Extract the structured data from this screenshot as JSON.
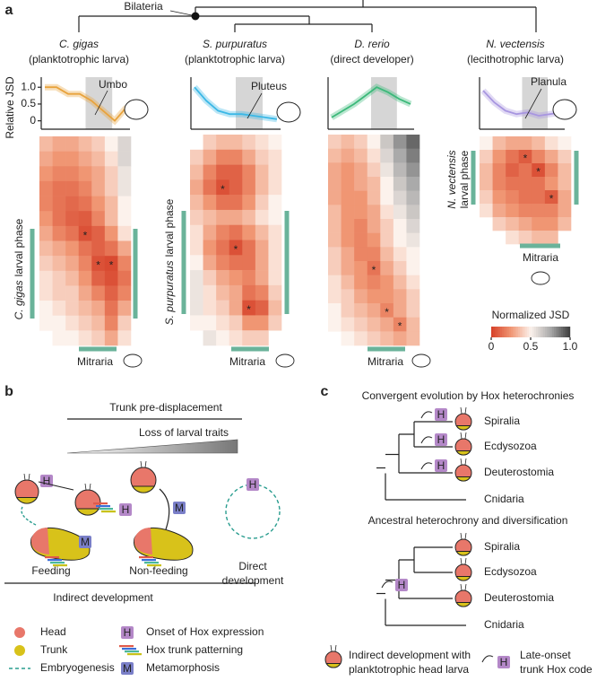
{
  "panel_a": {
    "label": "a",
    "tree_node": "Bilateria",
    "y_label": "Relative JSD",
    "mitraria": "Mitraria",
    "star": "*",
    "line_ylim": [
      -0.25,
      1.3
    ],
    "line_yticks": [
      0,
      0.5,
      {
        "value": 1,
        "label": "1.0"
      }
    ],
    "species": [
      {
        "name": "C. gigas",
        "stage": "(planktotrophic larva)",
        "icon_label": "Umbo",
        "phase_label": "larval phase",
        "color": "#e8a33d",
        "jsd": [
          1.0,
          1.0,
          0.8,
          0.8,
          0.6,
          0.3,
          0.0,
          0.4
        ],
        "heatmap": [
          [
            0.35,
            0.3,
            0.3,
            0.35,
            0.4,
            0.5,
            0.6
          ],
          [
            0.3,
            0.25,
            0.25,
            0.3,
            0.35,
            0.45,
            0.6
          ],
          [
            0.25,
            0.2,
            0.2,
            0.25,
            0.3,
            0.4,
            0.55
          ],
          [
            0.2,
            0.15,
            0.15,
            0.2,
            0.3,
            0.4,
            0.55
          ],
          [
            0.2,
            0.15,
            0.12,
            0.15,
            0.25,
            0.35,
            0.5
          ],
          [
            0.25,
            0.15,
            0.1,
            0.08,
            0.2,
            0.35,
            0.5
          ],
          [
            0.3,
            0.2,
            0.15,
            0.05,
            0.1,
            0.25,
            0.45
          ],
          [
            0.35,
            0.3,
            0.25,
            0.15,
            0.1,
            0.15,
            0.3
          ],
          [
            0.4,
            0.35,
            0.3,
            0.2,
            0.05,
            0.03,
            0.2
          ],
          [
            0.45,
            0.4,
            0.35,
            0.25,
            0.1,
            0.05,
            0.15
          ],
          [
            0.45,
            0.4,
            0.4,
            0.3,
            0.2,
            0.1,
            0.2
          ],
          [
            0.5,
            0.45,
            0.4,
            0.35,
            0.3,
            0.15,
            0.3
          ],
          [
            0.5,
            0.5,
            0.45,
            0.4,
            0.35,
            0.2,
            0.4
          ],
          [
            null,
            0.5,
            0.5,
            0.45,
            0.4,
            0.3,
            0.45
          ]
        ],
        "star_cells": [
          [
            6,
            3
          ],
          [
            8,
            4
          ],
          [
            8,
            5
          ]
        ]
      },
      {
        "name": "S. purpuratus",
        "stage": "(planktotrophic larva)",
        "icon_label": "Pluteus",
        "phase_label": "larval phase",
        "color": "#3bb8e6",
        "jsd": [
          1.0,
          0.6,
          0.3,
          0.2,
          0.2,
          0.15,
          0.1,
          0.05
        ],
        "heatmap": [
          [
            null,
            0.4,
            0.35,
            0.35,
            0.4,
            0.45,
            0.5
          ],
          [
            0.4,
            0.3,
            0.2,
            0.2,
            0.3,
            0.4,
            0.45
          ],
          [
            0.35,
            0.2,
            0.1,
            0.1,
            0.2,
            0.35,
            0.45
          ],
          [
            0.3,
            0.15,
            0.05,
            0.1,
            0.2,
            0.35,
            0.45
          ],
          [
            0.35,
            0.25,
            0.15,
            0.15,
            0.25,
            0.4,
            0.5
          ],
          [
            0.4,
            0.35,
            0.3,
            0.3,
            0.35,
            0.45,
            0.5
          ],
          [
            0.45,
            0.3,
            0.2,
            0.15,
            0.25,
            0.35,
            0.45
          ],
          [
            0.45,
            0.25,
            0.15,
            0.05,
            0.15,
            0.3,
            0.45
          ],
          [
            0.5,
            0.3,
            0.2,
            0.15,
            0.15,
            0.3,
            0.45
          ],
          [
            0.55,
            0.4,
            0.3,
            0.25,
            0.2,
            0.3,
            0.45
          ],
          [
            0.55,
            0.45,
            0.35,
            0.3,
            0.15,
            0.2,
            0.4
          ],
          [
            0.55,
            0.45,
            0.4,
            0.3,
            0.05,
            0.1,
            0.35
          ],
          [
            0.5,
            0.5,
            0.45,
            0.4,
            0.25,
            0.25,
            0.4
          ],
          [
            null,
            0.55,
            0.5,
            0.45,
            0.4,
            0.4,
            null
          ]
        ],
        "star_cells": [
          [
            3,
            2
          ],
          [
            7,
            3
          ],
          [
            11,
            4
          ]
        ]
      },
      {
        "name": "D. rerio",
        "stage": "(direct developer)",
        "color": "#3cb97a",
        "jsd": [
          0.1,
          0.3,
          0.5,
          0.75,
          1.0,
          0.85,
          0.65,
          0.5
        ],
        "heatmap": [
          [
            0.4,
            0.35,
            0.4,
            0.5,
            0.65,
            0.8,
            0.9
          ],
          [
            0.35,
            0.3,
            0.35,
            0.45,
            0.6,
            0.75,
            0.85
          ],
          [
            0.3,
            0.25,
            0.3,
            0.4,
            0.55,
            0.7,
            0.8
          ],
          [
            0.3,
            0.25,
            0.3,
            0.35,
            0.5,
            0.65,
            0.75
          ],
          [
            0.3,
            0.25,
            0.25,
            0.35,
            0.5,
            0.6,
            0.7
          ],
          [
            0.35,
            0.25,
            0.25,
            0.3,
            0.45,
            0.55,
            0.65
          ],
          [
            0.35,
            0.25,
            0.2,
            0.3,
            0.4,
            0.5,
            0.6
          ],
          [
            0.35,
            0.25,
            0.2,
            0.25,
            0.4,
            0.5,
            0.55
          ],
          [
            0.4,
            0.3,
            0.2,
            0.2,
            0.35,
            0.45,
            0.5
          ],
          [
            0.4,
            0.3,
            0.25,
            0.15,
            0.3,
            0.4,
            0.5
          ],
          [
            0.45,
            0.35,
            0.25,
            0.2,
            0.25,
            0.35,
            0.45
          ],
          [
            0.45,
            0.4,
            0.3,
            0.25,
            0.25,
            0.3,
            0.4
          ],
          [
            0.5,
            0.4,
            0.35,
            0.3,
            0.2,
            0.3,
            0.4
          ],
          [
            0.5,
            0.45,
            0.4,
            0.35,
            0.3,
            0.2,
            0.35
          ],
          [
            null,
            0.5,
            0.45,
            0.4,
            0.35,
            0.3,
            0.35
          ]
        ],
        "star_cells": [
          [
            9,
            3
          ],
          [
            12,
            4
          ],
          [
            13,
            5
          ]
        ]
      },
      {
        "name": "N. vectensis",
        "stage": "(lecithotrophic larva)",
        "icon_label": "Planula",
        "phase_label": "larval phase",
        "color": "#a896e0",
        "jsd": [
          0.9,
          0.55,
          0.3,
          0.2,
          0.25,
          0.15,
          0.2,
          0.25
        ],
        "heatmap": [
          [
            0.5,
            0.35,
            0.3,
            0.3,
            0.35,
            0.45,
            0.5
          ],
          [
            0.4,
            0.25,
            0.15,
            0.08,
            0.2,
            0.3,
            0.4
          ],
          [
            0.35,
            0.2,
            0.1,
            0.15,
            0.05,
            0.2,
            0.35
          ],
          [
            0.35,
            0.2,
            0.15,
            0.15,
            0.15,
            0.25,
            0.35
          ],
          [
            0.4,
            0.25,
            0.2,
            0.15,
            0.15,
            0.08,
            0.3
          ],
          [
            0.45,
            0.3,
            0.25,
            0.2,
            0.2,
            0.2,
            0.3
          ],
          [
            null,
            0.4,
            0.35,
            0.3,
            0.25,
            0.25,
            0.35
          ],
          [
            null,
            null,
            0.45,
            0.4,
            0.35,
            0.35,
            null
          ]
        ],
        "star_cells": [
          [
            1,
            3
          ],
          [
            2,
            4
          ],
          [
            4,
            5
          ]
        ]
      }
    ],
    "colorbar": {
      "title": "Normalized JSD",
      "lim": [
        0,
        1
      ],
      "ticks": [
        0,
        0.5,
        {
          "value": 1,
          "label": "1.0"
        }
      ]
    }
  },
  "panel_b": {
    "label": "b",
    "top_bar": "Trunk pre-displacement",
    "wedge": "Loss of larval traits",
    "hox": "H",
    "meta": "M",
    "feeding": "Feeding",
    "non_feeding": "Non-feeding",
    "indirect": "Indirect development",
    "direct": [
      "Direct",
      "development"
    ],
    "legend": {
      "head": "Head",
      "trunk": "Trunk",
      "embryogenesis": "Embryogenesis",
      "hox_onset": "Onset of Hox expression",
      "hox_patterning": "Hox trunk patterning",
      "metamorphosis": "Metamorphosis"
    }
  },
  "panel_c": {
    "label": "c",
    "convergent": "Convergent evolution by Hox heterochronies",
    "ancestral": "Ancestral heterochrony and diversification",
    "taxa": [
      "Spiralia",
      "Ecdysozoa",
      "Deuterostomia",
      "Cnidaria"
    ],
    "legend": {
      "larva": [
        "Indirect development with",
        "planktotrophic head larva"
      ],
      "late": [
        "Late-onset",
        "trunk Hox code"
      ]
    }
  }
}
